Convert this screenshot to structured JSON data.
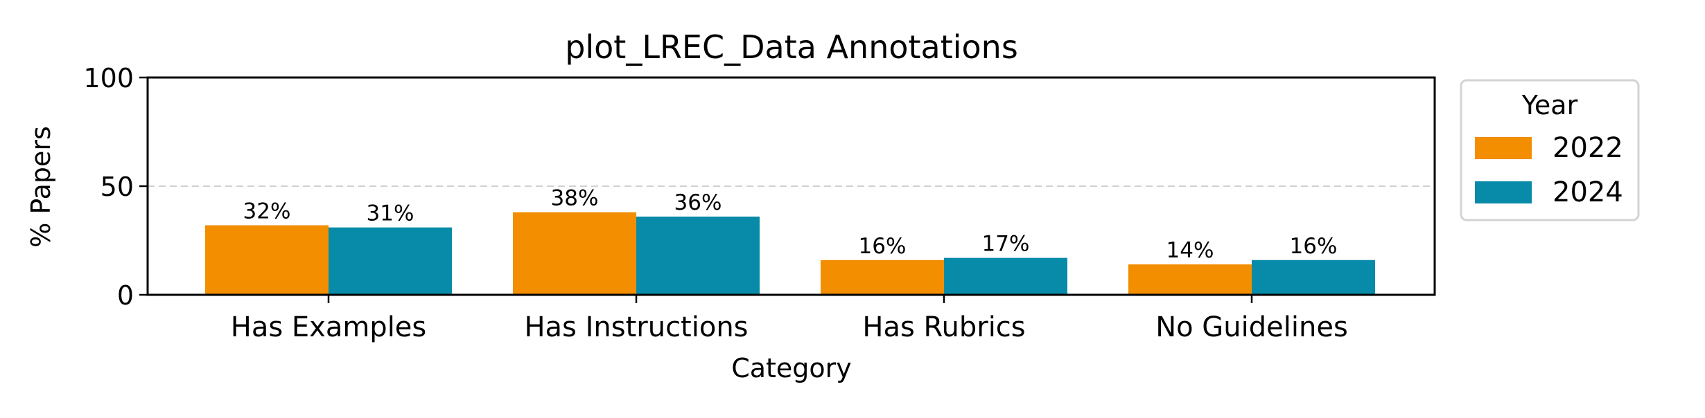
{
  "chart_data": {
    "type": "bar",
    "title": "plot_LREC_Data Annotations",
    "xlabel": "Category",
    "ylabel": "% Papers",
    "categories": [
      "Has Examples",
      "Has Instructions",
      "Has Rubrics",
      "No Guidelines"
    ],
    "series": [
      {
        "name": "2022",
        "color": "#F28E00",
        "values": [
          32,
          38,
          16,
          14
        ],
        "labels": [
          "32%",
          "38%",
          "16%",
          "14%"
        ]
      },
      {
        "name": "2024",
        "color": "#078BA8",
        "values": [
          31,
          36,
          17,
          16
        ],
        "labels": [
          "31%",
          "36%",
          "17%",
          "16%"
        ]
      }
    ],
    "ylim": [
      0,
      100
    ],
    "yticks": [
      0,
      50,
      100
    ],
    "grid": "horizontal dashed line at 50",
    "legend": {
      "title": "Year",
      "placement": "outside right",
      "entries": [
        "2022",
        "2024"
      ]
    }
  }
}
